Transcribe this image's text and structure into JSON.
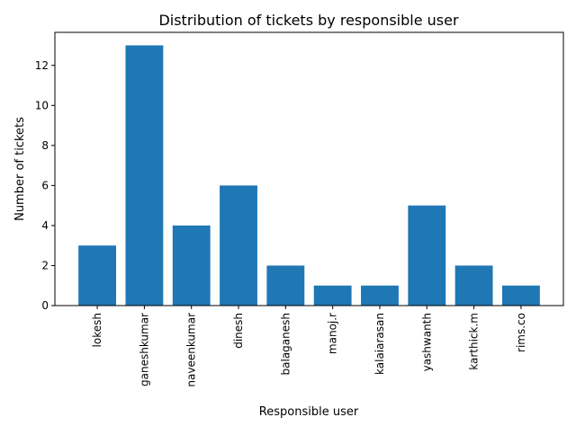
{
  "chart_data": {
    "type": "bar",
    "title": "Distribution of tickets by responsible user",
    "xlabel": "Responsible user",
    "ylabel": "Number of tickets",
    "categories": [
      "lokesh",
      "ganeshkumar",
      "naveenkumar",
      "dinesh",
      "balaganesh",
      "manoj.r",
      "kalaiarasan",
      "yashwanth",
      "karthick.m",
      "rims.co"
    ],
    "values": [
      3,
      13,
      4,
      6,
      2,
      1,
      1,
      5,
      2,
      1
    ],
    "ylim": [
      0,
      13.65
    ],
    "yticks": [
      0,
      2,
      4,
      6,
      8,
      10,
      12
    ],
    "grid": false,
    "bar_color": "#1f77b4"
  }
}
